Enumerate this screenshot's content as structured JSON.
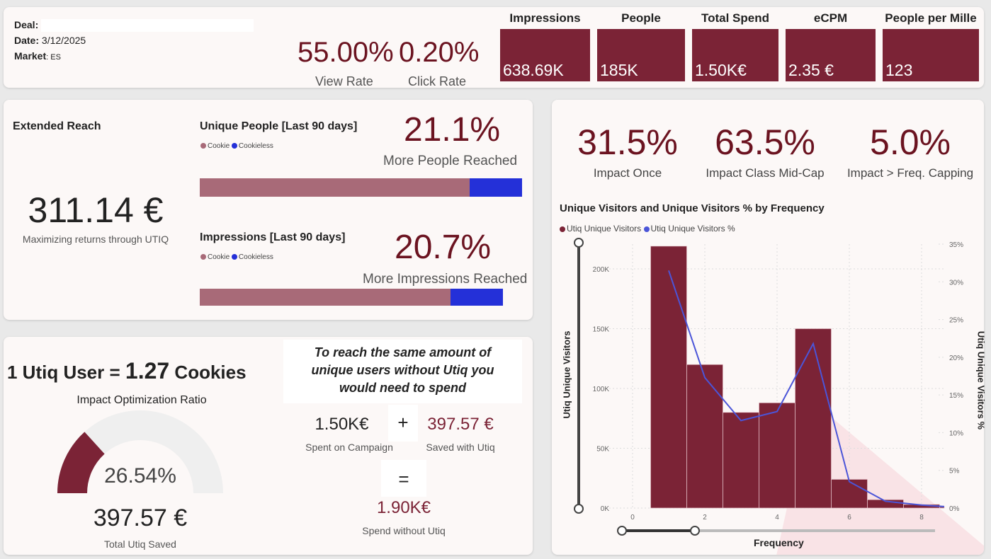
{
  "header": {
    "deal_label": "Deal:",
    "deal_value": "",
    "date_label": "Date:",
    "date_value": "3/12/2025",
    "market_label": "Market",
    "market_value": ": ES",
    "view_rate": "55.00%",
    "view_rate_label": "View Rate",
    "click_rate": "0.20%",
    "click_rate_label": "Click Rate"
  },
  "kpis": [
    {
      "label": "Impressions",
      "value": "638.69K"
    },
    {
      "label": "People",
      "value": "185K"
    },
    {
      "label": "Total Spend",
      "value": "1.50K€"
    },
    {
      "label": "eCPM",
      "value": "2.35 €"
    },
    {
      "label": "People per Mille",
      "value": "123"
    }
  ],
  "reach": {
    "title": "Extended Reach",
    "value": "311.14 €",
    "subtitle": "Maximizing returns through UTIQ",
    "people": {
      "title": "Unique People [Last 90 days]",
      "pct": "21.1%",
      "pct_label": "More People Reached",
      "cookie_share": 0.837
    },
    "impressions": {
      "title": "Impressions [Last 90 days]",
      "pct": "20.7%",
      "pct_label": "More Impressions Reached",
      "cookie_share": 0.828
    },
    "legend_cookie": "Cookie",
    "legend_cookieless": "Cookieless",
    "cookie_color": "#a86a78",
    "cookieless_color": "#2430d8"
  },
  "optim": {
    "prefix": "1 Utiq User =",
    "ratio": "1.27",
    "suffix": "Cookies",
    "gauge_title": "Impact Optimization Ratio",
    "gauge_value": "26.54%",
    "gauge_fraction": 0.2654,
    "saved": "397.57 €",
    "saved_label": "Total Utiq Saved"
  },
  "spend": {
    "headline": "To reach the same amount of unique users without Utiq you would need to spend",
    "campaign": "1.50K€",
    "campaign_label": "Spent on Campaign",
    "plus": "+",
    "saved": "397.57 €",
    "saved_label": "Saved with Utiq",
    "equals": "=",
    "total": "1.90K€",
    "total_label": "Spend without Utiq"
  },
  "impact": [
    {
      "value": "31.5%",
      "label": "Impact Once"
    },
    {
      "value": "63.5%",
      "label": "Impact Class Mid-Cap"
    },
    {
      "value": "5.0%",
      "label": "Impact > Freq. Capping"
    }
  ],
  "chart_data": {
    "type": "bar",
    "title": "Unique Visitors and Unique Visitors % by Frequency",
    "xlabel": "Frequency",
    "ylabel": "Utiq Unique Visitors",
    "y2label": "Utiq Unique Visitors %",
    "x": [
      1,
      2,
      3,
      4,
      5,
      6,
      7,
      8,
      9
    ],
    "series": [
      {
        "name": "Utiq Unique Visitors",
        "type": "bar",
        "color": "#7b2336",
        "values": [
          219000,
          120000,
          80000,
          88000,
          150000,
          24000,
          7000,
          3000,
          1000
        ]
      },
      {
        "name": "Utiq Unique Visitors %",
        "type": "line",
        "color": "#4b55d8",
        "values": [
          31.5,
          17.3,
          11.6,
          12.8,
          21.8,
          3.5,
          0.9,
          0.4,
          0.2
        ]
      }
    ],
    "xticks": [
      "0",
      "2",
      "4",
      "6",
      "8"
    ],
    "yticks": [
      "0K",
      "50K",
      "100K",
      "150K",
      "200K"
    ],
    "y2ticks": [
      "0%",
      "5%",
      "10%",
      "15%",
      "20%",
      "25%",
      "30%",
      "35%"
    ],
    "xlim": [
      0,
      8.6
    ],
    "ylim": [
      0,
      220000
    ],
    "y2lim": [
      0,
      35
    ]
  }
}
